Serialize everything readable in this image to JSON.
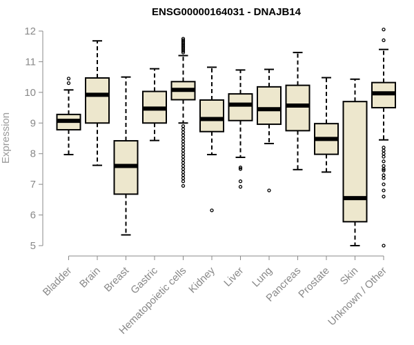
{
  "chart_data": {
    "type": "boxplot",
    "title": "ENSG00000164031 - DNAJB14",
    "xlabel": "",
    "ylabel": "Expression",
    "ylim": [
      5,
      12
    ],
    "yticks": [
      5,
      6,
      7,
      8,
      9,
      10,
      11,
      12
    ],
    "categories": [
      "Bladder",
      "Brain",
      "Breast",
      "Gastric",
      "Hematopoietic cells",
      "Kidney",
      "Liver",
      "Lung",
      "Pancreas",
      "Prostate",
      "Skin",
      "Unknown / Other"
    ],
    "boxes": [
      {
        "name": "Bladder",
        "whisker_low": 7.97,
        "q1": 8.78,
        "median": 9.07,
        "q3": 9.28,
        "whisker_high": 10.08,
        "outliers": [
          10.3,
          10.45
        ]
      },
      {
        "name": "Brain",
        "whisker_low": 7.62,
        "q1": 9.0,
        "median": 9.92,
        "q3": 10.47,
        "whisker_high": 11.68,
        "outliers": []
      },
      {
        "name": "Breast",
        "whisker_low": 5.35,
        "q1": 6.68,
        "median": 7.6,
        "q3": 8.42,
        "whisker_high": 10.5,
        "outliers": []
      },
      {
        "name": "Gastric",
        "whisker_low": 8.43,
        "q1": 9.0,
        "median": 9.47,
        "q3": 10.03,
        "whisker_high": 10.77,
        "outliers": []
      },
      {
        "name": "Hematopoietic cells",
        "whisker_low": 9.0,
        "q1": 9.76,
        "median": 10.08,
        "q3": 10.35,
        "whisker_high": 11.2,
        "outliers": [
          11.3,
          11.35,
          11.4,
          11.45,
          11.5,
          11.55,
          11.6,
          11.65,
          11.7,
          11.75,
          8.9,
          8.8,
          8.7,
          8.6,
          8.5,
          8.4,
          8.3,
          8.2,
          8.1,
          8.0,
          7.9,
          7.8,
          7.7,
          7.6,
          7.5,
          7.4,
          7.3,
          7.2,
          7.1,
          6.95
        ]
      },
      {
        "name": "Kidney",
        "whisker_low": 7.97,
        "q1": 8.72,
        "median": 9.13,
        "q3": 9.75,
        "whisker_high": 10.82,
        "outliers": [
          6.15
        ]
      },
      {
        "name": "Liver",
        "whisker_low": 7.88,
        "q1": 9.08,
        "median": 9.6,
        "q3": 9.95,
        "whisker_high": 10.73,
        "outliers": [
          7.55,
          7.5,
          7.1,
          6.92
        ]
      },
      {
        "name": "Lung",
        "whisker_low": 8.33,
        "q1": 8.96,
        "median": 9.45,
        "q3": 10.18,
        "whisker_high": 10.75,
        "outliers": [
          6.8
        ]
      },
      {
        "name": "Pancreas",
        "whisker_low": 7.48,
        "q1": 8.75,
        "median": 9.57,
        "q3": 10.23,
        "whisker_high": 11.3,
        "outliers": []
      },
      {
        "name": "Prostate",
        "whisker_low": 7.4,
        "q1": 7.98,
        "median": 8.48,
        "q3": 8.98,
        "whisker_high": 10.48,
        "outliers": []
      },
      {
        "name": "Skin",
        "whisker_low": 5.0,
        "q1": 5.78,
        "median": 6.55,
        "q3": 9.7,
        "whisker_high": 10.43,
        "outliers": []
      },
      {
        "name": "Unknown / Other",
        "whisker_low": 8.45,
        "q1": 9.5,
        "median": 9.97,
        "q3": 10.32,
        "whisker_high": 11.4,
        "outliers": [
          12.05,
          11.7,
          8.2,
          8.1,
          8.0,
          7.9,
          7.75,
          7.6,
          7.5,
          7.45,
          7.3,
          7.2,
          7.0,
          6.8,
          6.6,
          5.0
        ]
      }
    ],
    "box_fill": "#ede7cd",
    "median_color": "#000000",
    "grid": false
  }
}
